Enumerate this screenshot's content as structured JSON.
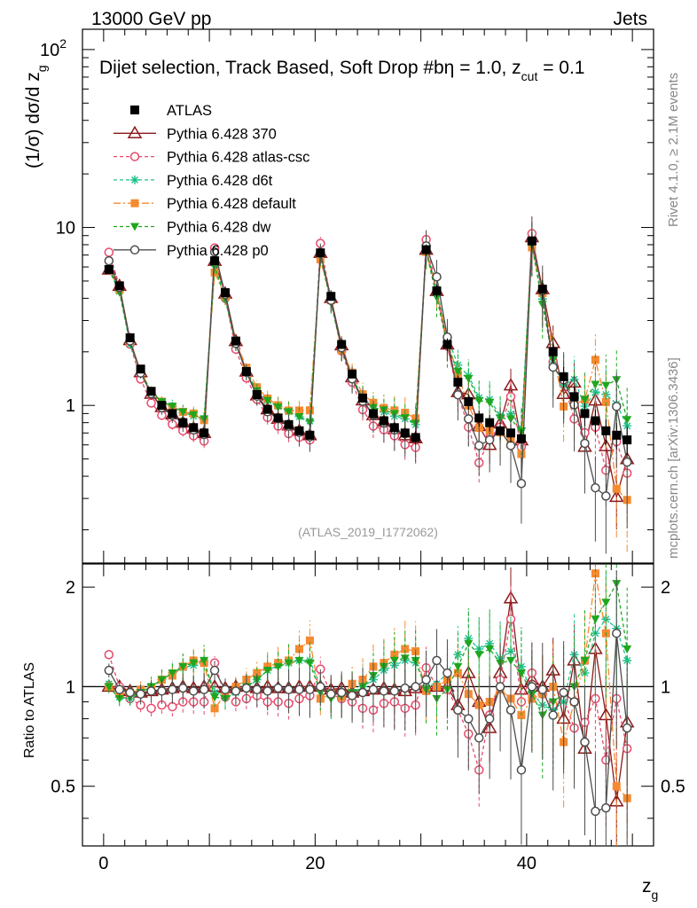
{
  "chart_data": {
    "type": "scatter",
    "header": {
      "left": "13000 GeV pp",
      "right": "Jets"
    },
    "title": "Dijet selection, Track Based, Soft Drop #bη = 1.0, z",
    "title_sub": "cut",
    "title_tail": " = 0.1",
    "xlabel": "z",
    "xlabel_sub": "g",
    "ylabel": "(1/σ) dσ/d z",
    "ylabel_sub": "g",
    "ratio_ylabel": "Ratio to ATLAS",
    "analysis_tag": "(ATLAS_2019_I1772062)",
    "side_text_top": "Rivet 4.1.0, ≥ 2.1M events",
    "side_text_bottom": "mcplots.cern.ch [arXiv:1306.3436]",
    "xlim": [
      -2,
      52
    ],
    "ylim_main": [
      0.13,
      130
    ],
    "ylim_ratio": [
      0.33,
      2.35
    ],
    "main_ticks": [
      {
        "v": 1,
        "label": "1"
      },
      {
        "v": 10,
        "label": "10"
      },
      {
        "v": 100,
        "label": "10",
        "sup": "2"
      }
    ],
    "ratio_ticks": [
      {
        "v": 0.5,
        "label": "0.5"
      },
      {
        "v": 1,
        "label": "1"
      },
      {
        "v": 2,
        "label": "2"
      }
    ],
    "x_ticks": [
      {
        "v": 0,
        "label": "0"
      },
      {
        "v": 20,
        "label": "20"
      },
      {
        "v": 40,
        "label": "40"
      }
    ],
    "data": {
      "name": "ATLAS",
      "x": [
        0.5,
        1.5,
        2.5,
        3.5,
        4.5,
        5.5,
        6.5,
        7.5,
        8.5,
        9.5,
        10.5,
        11.5,
        12.5,
        13.5,
        14.5,
        15.5,
        16.5,
        17.5,
        18.5,
        19.5,
        20.5,
        21.5,
        22.5,
        23.5,
        24.5,
        25.5,
        26.5,
        27.5,
        28.5,
        29.5,
        30.5,
        31.5,
        32.5,
        33.5,
        34.5,
        35.5,
        36.5,
        37.5,
        38.5,
        39.5,
        40.5,
        41.5,
        42.5,
        43.5,
        44.5,
        45.5,
        46.5,
        47.5,
        48.5,
        49.5
      ],
      "y": [
        5.8,
        4.7,
        2.4,
        1.6,
        1.2,
        1.0,
        0.9,
        0.8,
        0.75,
        0.7,
        6.5,
        4.3,
        2.3,
        1.55,
        1.15,
        0.95,
        0.85,
        0.78,
        0.72,
        0.68,
        7.2,
        4.1,
        2.2,
        1.5,
        1.1,
        0.9,
        0.82,
        0.75,
        0.7,
        0.66,
        7.5,
        4.4,
        2.2,
        1.35,
        1.05,
        0.85,
        0.8,
        0.72,
        0.7,
        0.65,
        8.4,
        4.5,
        2.0,
        1.45,
        1.12,
        0.9,
        0.82,
        0.72,
        0.68,
        0.64
      ]
    },
    "series": [
      {
        "name": "Pythia 6.428 370",
        "color": "#8b1a1a",
        "dash": "",
        "marker": "triangle-open",
        "ratio": [
          1.0,
          1.0,
          0.97,
          0.96,
          0.97,
          0.98,
          0.99,
          1.0,
          0.99,
          1.0,
          1.0,
          0.99,
          1.0,
          1.0,
          0.99,
          1.0,
          0.99,
          0.99,
          1.0,
          1.0,
          1.0,
          0.98,
          0.99,
          0.96,
          0.97,
          0.98,
          0.99,
          0.98,
          0.97,
          0.99,
          1.0,
          1.0,
          1.0,
          0.88,
          1.1,
          0.9,
          0.75,
          1.1,
          1.85,
          0.98,
          1.05,
          1.0,
          1.12,
          0.8,
          1.2,
          0.65,
          1.3,
          0.82,
          0.45,
          0.78
        ]
      },
      {
        "name": "Pythia 6.428 atlas-csc",
        "color": "#e8496b",
        "dash": "4,3",
        "marker": "circle-open",
        "ratio": [
          1.25,
          1.0,
          0.92,
          0.88,
          0.86,
          0.88,
          0.87,
          0.9,
          0.9,
          0.9,
          1.18,
          0.93,
          0.9,
          0.92,
          0.94,
          0.9,
          0.9,
          0.89,
          0.92,
          0.94,
          1.13,
          0.95,
          0.92,
          0.9,
          0.86,
          0.85,
          0.89,
          0.9,
          0.86,
          0.88,
          1.14,
          1.0,
          0.98,
          0.85,
          0.72,
          0.56,
          0.82,
          1.05,
          1.6,
          0.9,
          1.1,
          0.95,
          0.88,
          0.92,
          0.75,
          0.78,
          0.92,
          0.6,
          0.92,
          0.65
        ]
      },
      {
        "name": "Pythia 6.428 d6t",
        "color": "#1ec08c",
        "dash": "4,3",
        "marker": "asterisk",
        "ratio": [
          1.02,
          0.93,
          0.92,
          0.96,
          1.0,
          1.05,
          1.1,
          1.14,
          1.16,
          1.19,
          0.96,
          0.93,
          0.96,
          0.99,
          1.05,
          1.12,
          1.16,
          1.18,
          1.2,
          1.2,
          1.0,
          0.96,
          0.95,
          0.95,
          1.0,
          1.05,
          1.12,
          1.16,
          1.2,
          1.18,
          1.0,
          1.02,
          1.1,
          1.25,
          1.4,
          1.3,
          1.35,
          1.22,
          1.28,
          1.15,
          0.96,
          0.88,
          0.85,
          0.9,
          1.25,
          1.1,
          1.45,
          1.6,
          1.5,
          1.2
        ]
      },
      {
        "name": "Pythia 6.428 default",
        "color": "#f58a30",
        "dash": "8,3,2,3",
        "marker": "square",
        "ratio": [
          1.0,
          0.95,
          0.96,
          0.98,
          0.99,
          1.05,
          1.08,
          1.15,
          1.2,
          1.18,
          0.86,
          0.95,
          1.0,
          1.05,
          1.1,
          1.15,
          1.18,
          1.2,
          1.3,
          1.38,
          0.92,
          0.95,
          0.93,
          1.02,
          1.05,
          1.15,
          1.18,
          1.25,
          1.3,
          1.28,
          0.97,
          1.0,
          1.05,
          1.1,
          0.95,
          0.88,
          0.9,
          0.98,
          0.92,
          0.82,
          0.92,
          0.95,
          1.0,
          0.68,
          0.9,
          1.2,
          2.2,
          1.45,
          0.5,
          0.46
        ]
      },
      {
        "name": "Pythia 6.428 dw",
        "color": "#1fa61f",
        "dash": "4,3",
        "marker": "triangle-down",
        "ratio": [
          1.0,
          0.92,
          0.93,
          0.96,
          1.0,
          1.05,
          1.1,
          1.15,
          1.18,
          1.2,
          0.93,
          0.92,
          0.96,
          1.0,
          1.05,
          1.12,
          1.15,
          1.18,
          1.2,
          1.18,
          0.96,
          0.92,
          0.94,
          0.96,
          1.0,
          1.08,
          1.15,
          1.2,
          1.22,
          1.2,
          0.98,
          0.92,
          0.98,
          1.15,
          1.35,
          1.25,
          1.3,
          1.18,
          1.2,
          1.1,
          0.95,
          0.82,
          0.9,
          0.95,
          1.0,
          1.2,
          1.6,
          1.8,
          2.05,
          1.3
        ]
      },
      {
        "name": "Pythia 6.428 p0",
        "color": "#4d4d4d",
        "dash": "",
        "marker": "circle-open",
        "ratio": [
          1.12,
          0.98,
          0.96,
          0.95,
          0.97,
          0.97,
          0.98,
          0.99,
          0.97,
          0.98,
          1.12,
          0.98,
          0.97,
          0.99,
          0.98,
          0.97,
          0.99,
          0.98,
          0.98,
          0.98,
          1.0,
          0.95,
          0.96,
          0.94,
          0.96,
          0.98,
          0.97,
          0.97,
          0.99,
          1.0,
          1.05,
          1.2,
          1.1,
          0.85,
          0.8,
          0.7,
          0.8,
          1.0,
          0.85,
          0.56,
          1.0,
          0.98,
          0.82,
          0.96,
          0.9,
          0.68,
          0.42,
          0.43,
          1.45,
          0.75
        ]
      }
    ]
  }
}
